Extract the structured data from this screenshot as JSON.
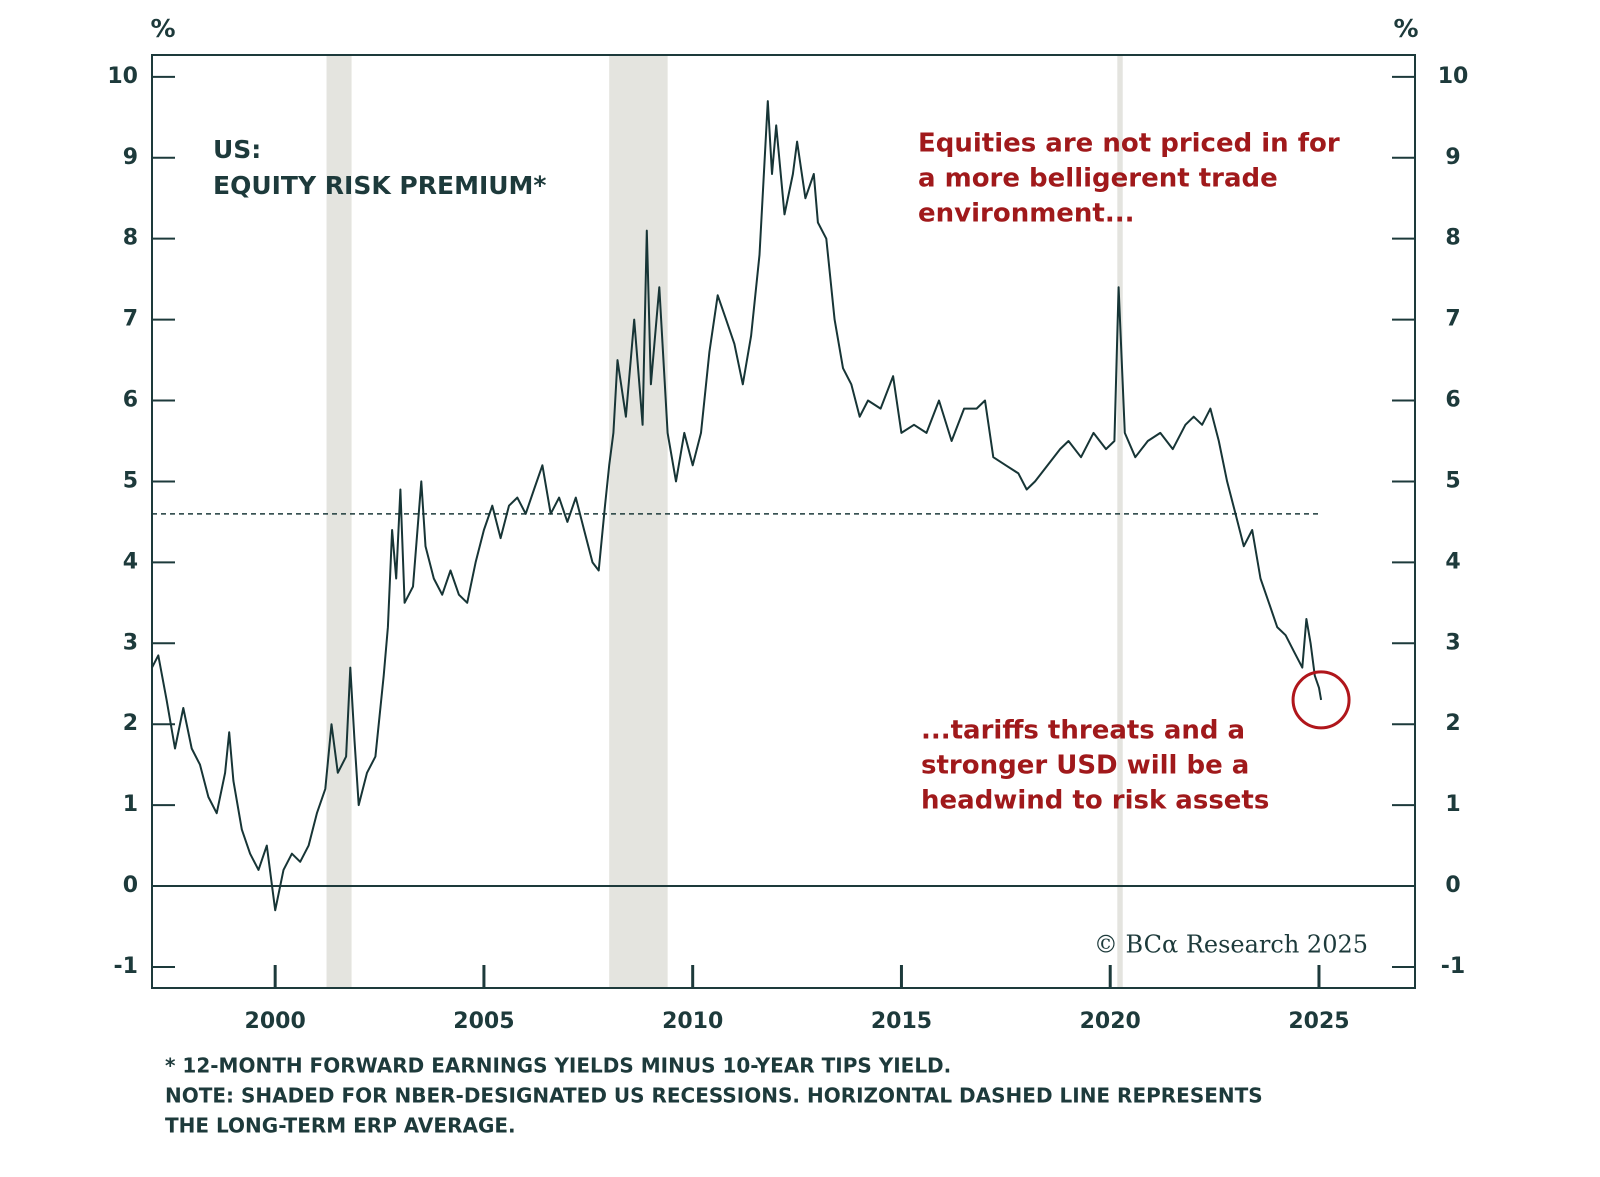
{
  "chart_data": {
    "type": "line",
    "y_unit": "%",
    "y2_unit": "%",
    "title": "US:",
    "subtitle": "EQUITY RISK PREMIUM*",
    "annotations": [
      [
        "Equities are not priced in for",
        "a more belligerent trade",
        "environment..."
      ],
      [
        "...tariffs threats and a",
        "stronger USD will be a",
        "headwind to risk assets"
      ]
    ],
    "source": "© BCα Research 2025",
    "notes": [
      "* 12-MONTH FORWARD EARNINGS YIELDS MINUS 10-YEAR TIPS YIELD.",
      "NOTE: SHADED FOR NBER-DESIGNATED US RECESSIONS. HORIZONTAL DASHED LINE REPRESENTS",
      "THE LONG-TERM ERP AVERAGE."
    ],
    "x": [
      1997.05,
      1997.2,
      1997.4,
      1997.6,
      1997.8,
      1998.0,
      1998.2,
      1998.4,
      1998.6,
      1998.8,
      1998.9,
      1999.0,
      1999.2,
      1999.4,
      1999.6,
      1999.8,
      2000.0,
      2000.2,
      2000.4,
      2000.6,
      2000.8,
      2001.0,
      2001.2,
      2001.35,
      2001.5,
      2001.7,
      2001.8,
      2001.9,
      2002.0,
      2002.2,
      2002.4,
      2002.6,
      2002.7,
      2002.8,
      2002.9,
      2003.0,
      2003.1,
      2003.3,
      2003.5,
      2003.6,
      2003.8,
      2004.0,
      2004.2,
      2004.4,
      2004.6,
      2004.8,
      2005.0,
      2005.2,
      2005.4,
      2005.6,
      2005.8,
      2006.0,
      2006.2,
      2006.4,
      2006.6,
      2006.8,
      2007.0,
      2007.2,
      2007.4,
      2007.6,
      2007.75,
      2007.9,
      2008.0,
      2008.1,
      2008.2,
      2008.4,
      2008.6,
      2008.8,
      2008.9,
      2009.0,
      2009.2,
      2009.4,
      2009.6,
      2009.8,
      2010.0,
      2010.2,
      2010.4,
      2010.6,
      2010.8,
      2011.0,
      2011.2,
      2011.4,
      2011.6,
      2011.8,
      2011.9,
      2012.0,
      2012.2,
      2012.4,
      2012.5,
      2012.7,
      2012.9,
      2013.0,
      2013.2,
      2013.4,
      2013.6,
      2013.8,
      2014.0,
      2014.2,
      2014.5,
      2014.8,
      2015.0,
      2015.3,
      2015.6,
      2015.9,
      2016.2,
      2016.5,
      2016.8,
      2017.0,
      2017.2,
      2017.5,
      2017.8,
      2018.0,
      2018.2,
      2018.5,
      2018.8,
      2019.0,
      2019.3,
      2019.6,
      2019.9,
      2020.1,
      2020.2,
      2020.35,
      2020.6,
      2020.9,
      2021.2,
      2021.5,
      2021.8,
      2022.0,
      2022.2,
      2022.4,
      2022.6,
      2022.8,
      2023.0,
      2023.2,
      2023.4,
      2023.6,
      2023.8,
      2024.0,
      2024.2,
      2024.4,
      2024.6,
      2024.7,
      2024.8,
      2024.9,
      2025.0,
      2025.05
    ],
    "series": [
      {
        "color": "#173536",
        "values": [
          2.7,
          2.85,
          2.3,
          1.7,
          2.2,
          1.7,
          1.5,
          1.1,
          0.9,
          1.4,
          1.9,
          1.3,
          0.7,
          0.4,
          0.2,
          0.5,
          -0.3,
          0.2,
          0.4,
          0.3,
          0.5,
          0.9,
          1.2,
          2.0,
          1.4,
          1.6,
          2.7,
          1.8,
          1.0,
          1.4,
          1.6,
          2.6,
          3.2,
          4.4,
          3.8,
          4.9,
          3.5,
          3.7,
          5.0,
          4.2,
          3.8,
          3.6,
          3.9,
          3.6,
          3.5,
          4.0,
          4.4,
          4.7,
          4.3,
          4.7,
          4.8,
          4.6,
          4.9,
          5.2,
          4.6,
          4.8,
          4.5,
          4.8,
          4.4,
          4.0,
          3.9,
          4.7,
          5.2,
          5.6,
          6.5,
          5.8,
          7.0,
          5.7,
          8.1,
          6.2,
          7.4,
          5.6,
          5.0,
          5.6,
          5.2,
          5.6,
          6.6,
          7.3,
          7.0,
          6.7,
          6.2,
          6.8,
          7.8,
          9.7,
          8.8,
          9.4,
          8.3,
          8.8,
          9.2,
          8.5,
          8.8,
          8.2,
          8.0,
          7.0,
          6.4,
          6.2,
          5.8,
          6.0,
          5.9,
          6.3,
          5.6,
          5.7,
          5.6,
          6.0,
          5.5,
          5.9,
          5.9,
          6.0,
          5.3,
          5.2,
          5.1,
          4.9,
          5.0,
          5.2,
          5.4,
          5.5,
          5.3,
          5.6,
          5.4,
          5.5,
          7.4,
          5.6,
          5.3,
          5.5,
          5.6,
          5.4,
          5.7,
          5.8,
          5.7,
          5.9,
          5.5,
          5.0,
          4.6,
          4.2,
          4.4,
          3.8,
          3.5,
          3.2,
          3.1,
          2.9,
          2.7,
          3.3,
          3.0,
          2.6,
          2.45,
          2.3
        ]
      }
    ],
    "average": 4.6,
    "recessions": [
      [
        2001.23,
        2001.83
      ],
      [
        2008.0,
        2009.4
      ],
      [
        2020.17,
        2020.3
      ]
    ],
    "highlight": {
      "x": 2025.05,
      "y": 2.3
    },
    "xlim": [
      1997.05,
      2027.3
    ],
    "xticks": [
      2000,
      2005,
      2010,
      2015,
      2020,
      2025
    ],
    "ylim": [
      -1.26,
      10.27
    ],
    "yticks": [
      -1,
      0,
      1,
      2,
      3,
      4,
      5,
      6,
      7,
      8,
      9,
      10
    ],
    "y2lim": [
      -1.26,
      10.27
    ],
    "y2ticks": [
      -1,
      0,
      1,
      2,
      3,
      4,
      5,
      6,
      7,
      8,
      9,
      10
    ]
  }
}
